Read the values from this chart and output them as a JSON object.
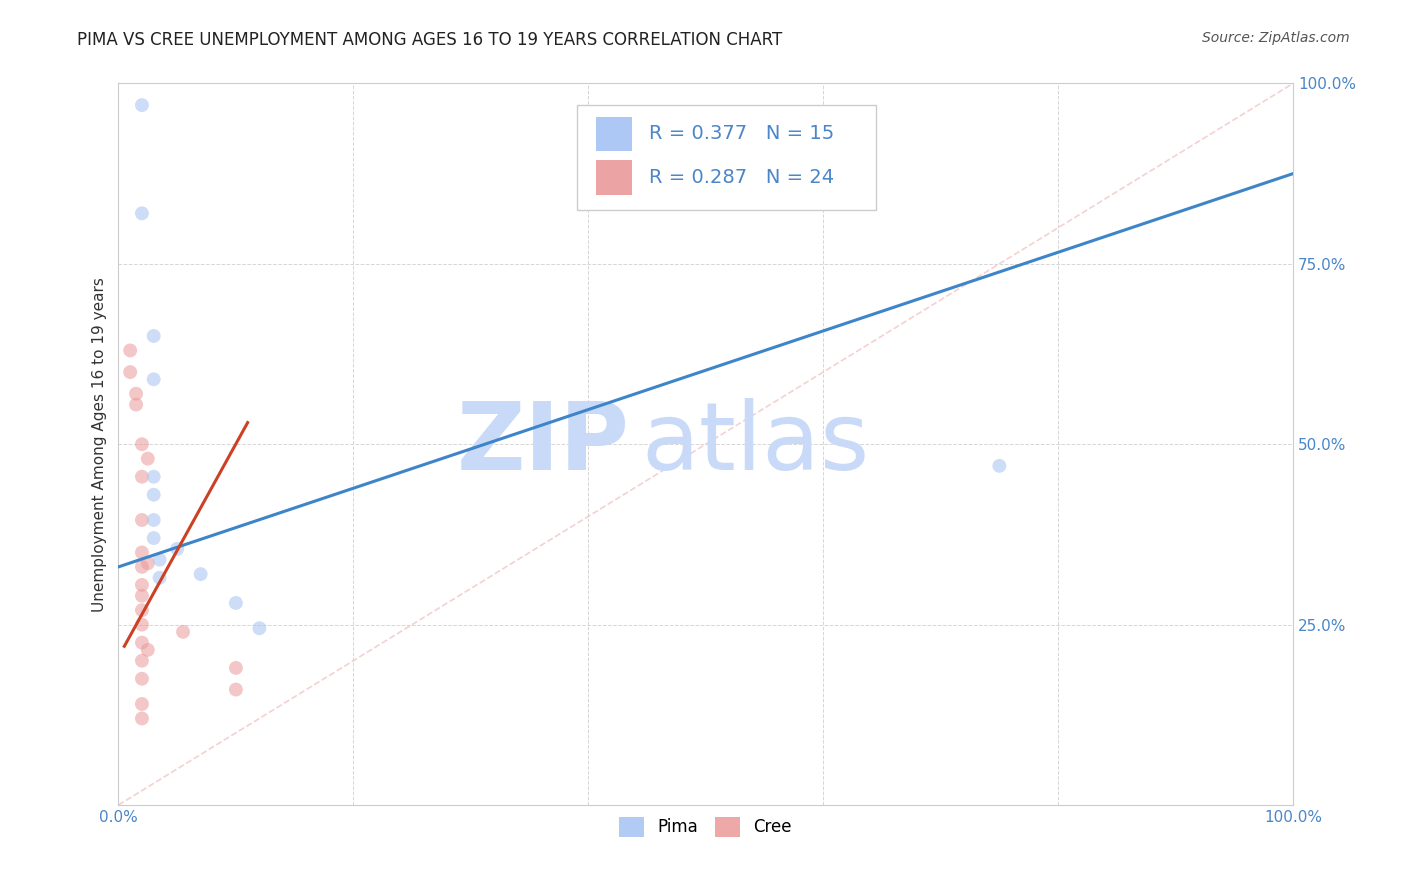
{
  "title": "PIMA VS CREE UNEMPLOYMENT AMONG AGES 16 TO 19 YEARS CORRELATION CHART",
  "source": "Source: ZipAtlas.com",
  "ylabel": "Unemployment Among Ages 16 to 19 years",
  "xlim": [
    0,
    1.0
  ],
  "ylim": [
    0,
    1.0
  ],
  "pima_color": "#a4c2f4",
  "cree_color": "#ea9999",
  "pima_line_color": "#3d85c8",
  "cree_line_color": "#cc4125",
  "diagonal_color": "#f4cccc",
  "tick_color": "#4a86c8",
  "pima_R": 0.377,
  "pima_N": 15,
  "cree_R": 0.287,
  "cree_N": 24,
  "pima_points": [
    [
      0.02,
      0.97
    ],
    [
      0.02,
      0.82
    ],
    [
      0.03,
      0.65
    ],
    [
      0.03,
      0.59
    ],
    [
      0.03,
      0.455
    ],
    [
      0.03,
      0.43
    ],
    [
      0.03,
      0.395
    ],
    [
      0.03,
      0.37
    ],
    [
      0.035,
      0.34
    ],
    [
      0.035,
      0.315
    ],
    [
      0.05,
      0.355
    ],
    [
      0.07,
      0.32
    ],
    [
      0.1,
      0.28
    ],
    [
      0.12,
      0.245
    ],
    [
      0.75,
      0.47
    ]
  ],
  "cree_points": [
    [
      0.01,
      0.63
    ],
    [
      0.01,
      0.6
    ],
    [
      0.015,
      0.57
    ],
    [
      0.015,
      0.555
    ],
    [
      0.02,
      0.5
    ],
    [
      0.02,
      0.455
    ],
    [
      0.02,
      0.395
    ],
    [
      0.02,
      0.35
    ],
    [
      0.02,
      0.33
    ],
    [
      0.02,
      0.305
    ],
    [
      0.02,
      0.29
    ],
    [
      0.02,
      0.27
    ],
    [
      0.02,
      0.25
    ],
    [
      0.02,
      0.225
    ],
    [
      0.02,
      0.2
    ],
    [
      0.02,
      0.175
    ],
    [
      0.02,
      0.14
    ],
    [
      0.02,
      0.12
    ],
    [
      0.025,
      0.48
    ],
    [
      0.025,
      0.335
    ],
    [
      0.025,
      0.215
    ],
    [
      0.055,
      0.24
    ],
    [
      0.1,
      0.19
    ],
    [
      0.1,
      0.16
    ]
  ],
  "pima_trend_x": [
    0.0,
    1.0
  ],
  "pima_trend_y": [
    0.33,
    0.875
  ],
  "cree_trend_x": [
    0.005,
    0.11
  ],
  "cree_trend_y": [
    0.22,
    0.53
  ],
  "marker_size": 100,
  "marker_alpha": 0.55,
  "watermark_zip_color": "#c9daf8",
  "watermark_atlas_color": "#c9daf8",
  "bg_color": "#ffffff",
  "title_fontsize": 12,
  "source_fontsize": 10,
  "ylabel_fontsize": 11,
  "tick_fontsize": 11,
  "legend_fontsize": 14,
  "grid_color": "#cccccc",
  "grid_alpha": 0.8
}
